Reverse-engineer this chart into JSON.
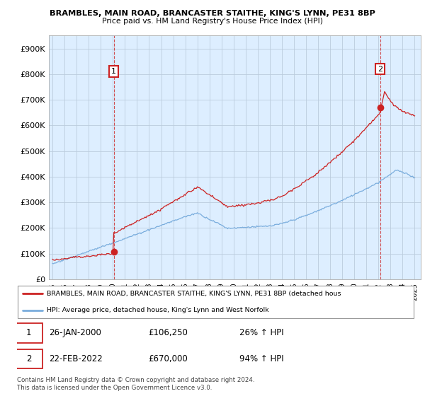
{
  "title1": "BRAMBLES, MAIN ROAD, BRANCASTER STAITHE, KING'S LYNN, PE31 8BP",
  "title2": "Price paid vs. HM Land Registry's House Price Index (HPI)",
  "ylim": [
    0,
    950000
  ],
  "yticks": [
    0,
    100000,
    200000,
    300000,
    400000,
    500000,
    600000,
    700000,
    800000,
    900000
  ],
  "ytick_labels": [
    "£0",
    "£100K",
    "£200K",
    "£300K",
    "£400K",
    "£500K",
    "£600K",
    "£700K",
    "£800K",
    "£900K"
  ],
  "red_color": "#cc2222",
  "blue_color": "#7aaddd",
  "plot_bg_color": "#ddeeff",
  "grid_color": "#bbccdd",
  "marker1_year": 2000.07,
  "marker1_value": 106250,
  "marker2_year": 2022.13,
  "marker2_value": 670000,
  "legend1": "BRAMBLES, MAIN ROAD, BRANCASTER STAITHE, KING'S LYNN, PE31 8BP (detached hous",
  "legend2": "HPI: Average price, detached house, King's Lynn and West Norfolk",
  "table_row1": [
    "1",
    "26-JAN-2000",
    "£106,250",
    "26% ↑ HPI"
  ],
  "table_row2": [
    "2",
    "22-FEB-2022",
    "£670,000",
    "94% ↑ HPI"
  ],
  "footnote": "Contains HM Land Registry data © Crown copyright and database right 2024.\nThis data is licensed under the Open Government Licence v3.0.",
  "xlim_left": 1994.7,
  "xlim_right": 2025.5
}
